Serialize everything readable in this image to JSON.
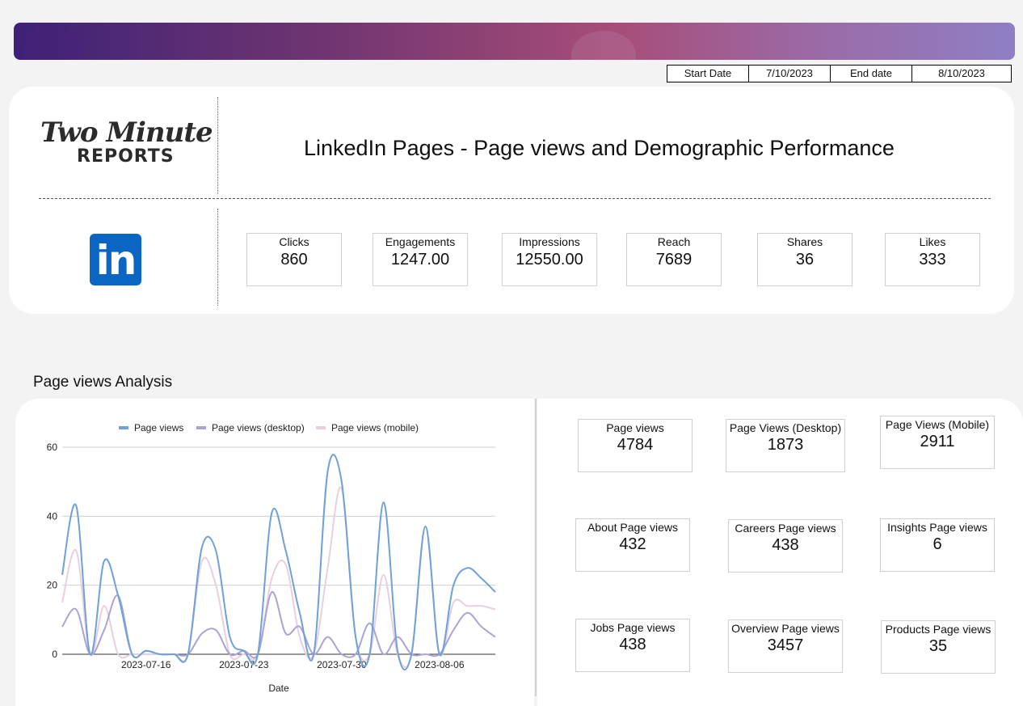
{
  "dates": {
    "start_label": "Start Date",
    "start_value": "7/10/2023",
    "end_label": "End date",
    "end_value": "8/10/2023"
  },
  "header": {
    "logo_line1": "Two Minute",
    "logo_line2": "REPORTS",
    "title": "LinkedIn Pages - Page views and Demographic Performance",
    "linkedin_logo": "in"
  },
  "kpis": [
    {
      "label": "Clicks",
      "value": "860"
    },
    {
      "label": "Engagements",
      "value": "1247.00"
    },
    {
      "label": "Impressions",
      "value": "12550.00"
    },
    {
      "label": "Reach",
      "value": "7689"
    },
    {
      "label": "Shares",
      "value": "36"
    },
    {
      "label": "Likes",
      "value": "333"
    }
  ],
  "section_title": "Page views Analysis",
  "page_views": [
    {
      "label": "Page views",
      "value": "4784"
    },
    {
      "label": "Page Views (Desktop)",
      "value": "1873"
    },
    {
      "label": "Page Views (Mobile)",
      "value": "2911"
    },
    {
      "label": "About Page views",
      "value": "432"
    },
    {
      "label": "Careers Page views",
      "value": "438"
    },
    {
      "label": "Insights Page views",
      "value": "6"
    },
    {
      "label": "Jobs Page views",
      "value": "438"
    },
    {
      "label": "Overview Page views",
      "value": "3457"
    },
    {
      "label": "Products Page views",
      "value": "35"
    }
  ],
  "colors": {
    "series1": "#6fa0d8",
    "series2": "#aaa3d6",
    "series3": "#e8cfe0",
    "linkedin": "#0a66c2"
  },
  "chart_data": {
    "type": "line",
    "xlabel": "Date",
    "ylabel": "",
    "ylim": [
      0,
      60
    ],
    "yticks": [
      "0",
      "20",
      "40",
      "60"
    ],
    "x_tick_labels": [
      "2023-07-16",
      "2023-07-23",
      "2023-07-30",
      "2023-08-06"
    ],
    "x": [
      "2023-07-10",
      "2023-07-11",
      "2023-07-12",
      "2023-07-13",
      "2023-07-14",
      "2023-07-15",
      "2023-07-16",
      "2023-07-17",
      "2023-07-18",
      "2023-07-19",
      "2023-07-20",
      "2023-07-21",
      "2023-07-22",
      "2023-07-23",
      "2023-07-24",
      "2023-07-25",
      "2023-07-26",
      "2023-07-27",
      "2023-07-28",
      "2023-07-29",
      "2023-07-30",
      "2023-07-31",
      "2023-08-01",
      "2023-08-02",
      "2023-08-03",
      "2023-08-04",
      "2023-08-05",
      "2023-08-06",
      "2023-08-07",
      "2023-08-08",
      "2023-08-09",
      "2023-08-10"
    ],
    "legend_position": "top",
    "series": [
      {
        "name": "Page views",
        "values": [
          23,
          43,
          0,
          27,
          17,
          0,
          1,
          0,
          0,
          0,
          31,
          30,
          5,
          1,
          0,
          41,
          30,
          12,
          0,
          53,
          50,
          5,
          0,
          44,
          1,
          0,
          37,
          0,
          20,
          25,
          22,
          18
        ]
      },
      {
        "name": "Page views (desktop)",
        "values": [
          8,
          13,
          0,
          7,
          17,
          0,
          1,
          0,
          0,
          0,
          6,
          7,
          0,
          1,
          0,
          18,
          6,
          8,
          0,
          5,
          0,
          0,
          9,
          0,
          5,
          0,
          0,
          0,
          7,
          12,
          8,
          5
        ]
      },
      {
        "name": "Page views (mobile)",
        "values": [
          15,
          30,
          0,
          14,
          0,
          0,
          0,
          0,
          0,
          0,
          27,
          20,
          0,
          0,
          0,
          22,
          26,
          5,
          0,
          25,
          48,
          5,
          0,
          23,
          0,
          0,
          37,
          0,
          15,
          14,
          14,
          13
        ]
      }
    ]
  }
}
